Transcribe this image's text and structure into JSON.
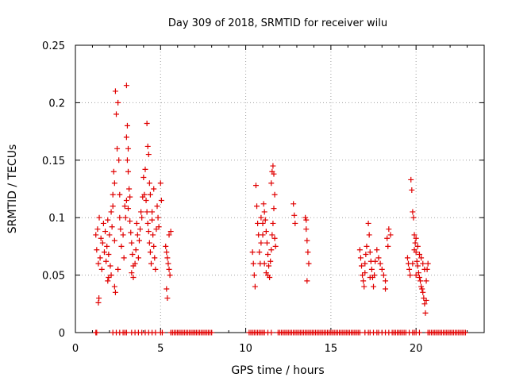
{
  "chart_data": {
    "type": "scatter",
    "title": "Day 309 of 2018, SRMTID for receiver wilu",
    "xlabel": "GPS time / hours",
    "ylabel": "SRMTID / TECUs",
    "xlim": [
      0,
      24
    ],
    "ylim": [
      0,
      0.25
    ],
    "x_ticks": [
      0,
      5,
      10,
      15,
      20
    ],
    "y_ticks": [
      0,
      0.05,
      0.1,
      0.15,
      0.2,
      0.25
    ],
    "x_tick_labels": [
      "0",
      "5",
      "10",
      "15",
      "20"
    ],
    "y_tick_labels": [
      "0",
      "0.05",
      "0.1",
      "0.15",
      "0.2",
      "0.25"
    ],
    "grid": true,
    "marker": "plus",
    "color": "#e00000",
    "series": [
      {
        "name": "SRMTID",
        "points": [
          [
            1.2,
            0.085
          ],
          [
            1.25,
            0.072
          ],
          [
            1.3,
            0.09
          ],
          [
            1.35,
            0.06
          ],
          [
            1.4,
            0.1
          ],
          [
            1.45,
            0.065
          ],
          [
            1.5,
            0.082
          ],
          [
            1.55,
            0.055
          ],
          [
            1.6,
            0.078
          ],
          [
            1.65,
            0.095
          ],
          [
            1.7,
            0.07
          ],
          [
            1.75,
            0.088
          ],
          [
            1.8,
            0.062
          ],
          [
            1.85,
            0.075
          ],
          [
            1.9,
            0.098
          ],
          [
            1.95,
            0.068
          ],
          [
            2.0,
            0.085
          ],
          [
            2.05,
            0.058
          ],
          [
            2.1,
            0.105
          ],
          [
            2.15,
            0.092
          ],
          [
            1.35,
            0.026
          ],
          [
            1.38,
            0.03
          ],
          [
            1.9,
            0.045
          ],
          [
            1.95,
            0.048
          ],
          [
            2.1,
            0.05
          ],
          [
            2.2,
            0.11
          ],
          [
            2.25,
            0.14
          ],
          [
            2.3,
            0.13
          ],
          [
            2.2,
            0.12
          ],
          [
            2.3,
            0.08
          ],
          [
            2.35,
            0.21
          ],
          [
            2.4,
            0.19
          ],
          [
            2.5,
            0.2
          ],
          [
            2.45,
            0.16
          ],
          [
            2.55,
            0.15
          ],
          [
            2.6,
            0.12
          ],
          [
            2.6,
            0.1
          ],
          [
            2.65,
            0.09
          ],
          [
            2.7,
            0.075
          ],
          [
            2.8,
            0.085
          ],
          [
            2.85,
            0.065
          ],
          [
            2.3,
            0.04
          ],
          [
            2.35,
            0.035
          ],
          [
            2.5,
            0.055
          ],
          [
            2.9,
            0.11
          ],
          [
            2.95,
            0.1
          ],
          [
            3.0,
            0.215
          ],
          [
            3.05,
            0.18
          ],
          [
            3.0,
            0.17
          ],
          [
            3.1,
            0.16
          ],
          [
            3.05,
            0.15
          ],
          [
            3.1,
            0.14
          ],
          [
            3.15,
            0.125
          ],
          [
            3.2,
            0.118
          ],
          [
            3.0,
            0.115
          ],
          [
            3.1,
            0.108
          ],
          [
            3.2,
            0.097
          ],
          [
            3.25,
            0.087
          ],
          [
            3.3,
            0.078
          ],
          [
            3.35,
            0.068
          ],
          [
            3.4,
            0.058
          ],
          [
            3.3,
            0.052
          ],
          [
            3.4,
            0.048
          ],
          [
            3.5,
            0.06
          ],
          [
            3.55,
            0.072
          ],
          [
            3.6,
            0.095
          ],
          [
            3.65,
            0.085
          ],
          [
            3.7,
            0.065
          ],
          [
            3.75,
            0.08
          ],
          [
            3.8,
            0.09
          ],
          [
            3.85,
            0.105
          ],
          [
            3.9,
            0.1
          ],
          [
            3.95,
            0.118
          ],
          [
            4.0,
            0.135
          ],
          [
            4.05,
            0.12
          ],
          [
            4.1,
            0.142
          ],
          [
            4.15,
            0.115
          ],
          [
            4.2,
            0.105
          ],
          [
            4.25,
            0.095
          ],
          [
            4.3,
            0.088
          ],
          [
            4.35,
            0.078
          ],
          [
            4.4,
            0.07
          ],
          [
            4.45,
            0.06
          ],
          [
            4.2,
            0.182
          ],
          [
            4.25,
            0.162
          ],
          [
            4.3,
            0.155
          ],
          [
            4.35,
            0.13
          ],
          [
            4.4,
            0.12
          ],
          [
            4.5,
            0.098
          ],
          [
            4.55,
            0.085
          ],
          [
            4.6,
            0.075
          ],
          [
            4.65,
            0.065
          ],
          [
            4.7,
            0.055
          ],
          [
            4.75,
            0.09
          ],
          [
            4.8,
            0.11
          ],
          [
            4.85,
            0.1
          ],
          [
            4.9,
            0.092
          ],
          [
            5.0,
            0.13
          ],
          [
            5.05,
            0.115
          ],
          [
            4.6,
            0.125
          ],
          [
            4.5,
            0.105
          ],
          [
            5.3,
            0.075
          ],
          [
            5.35,
            0.07
          ],
          [
            5.4,
            0.065
          ],
          [
            5.45,
            0.06
          ],
          [
            5.5,
            0.055
          ],
          [
            5.35,
            0.038
          ],
          [
            5.4,
            0.03
          ],
          [
            5.5,
            0.085
          ],
          [
            5.55,
            0.05
          ],
          [
            5.6,
            0.088
          ],
          [
            10.4,
            0.07
          ],
          [
            10.45,
            0.06
          ],
          [
            10.5,
            0.05
          ],
          [
            10.55,
            0.04
          ],
          [
            10.6,
            0.128
          ],
          [
            10.65,
            0.11
          ],
          [
            10.7,
            0.095
          ],
          [
            10.75,
            0.085
          ],
          [
            10.8,
            0.07
          ],
          [
            10.85,
            0.06
          ],
          [
            10.9,
            0.078
          ],
          [
            11.0,
            0.095
          ],
          [
            11.05,
            0.112
          ],
          [
            11.1,
            0.105
          ],
          [
            11.15,
            0.098
          ],
          [
            11.2,
            0.088
          ],
          [
            11.25,
            0.078
          ],
          [
            11.3,
            0.068
          ],
          [
            11.35,
            0.058
          ],
          [
            11.4,
            0.048
          ],
          [
            11.45,
            0.062
          ],
          [
            11.5,
            0.072
          ],
          [
            11.55,
            0.085
          ],
          [
            11.6,
            0.095
          ],
          [
            11.65,
            0.108
          ],
          [
            11.7,
            0.12
          ],
          [
            11.5,
            0.13
          ],
          [
            11.55,
            0.14
          ],
          [
            11.6,
            0.145
          ],
          [
            11.65,
            0.138
          ],
          [
            11.7,
            0.082
          ],
          [
            11.75,
            0.075
          ],
          [
            11.1,
            0.06
          ],
          [
            11.2,
            0.052
          ],
          [
            11.3,
            0.05
          ],
          [
            11.0,
            0.085
          ],
          [
            10.9,
            0.1
          ],
          [
            12.8,
            0.112
          ],
          [
            12.85,
            0.102
          ],
          [
            12.9,
            0.095
          ],
          [
            13.5,
            0.1
          ],
          [
            13.55,
            0.09
          ],
          [
            13.6,
            0.08
          ],
          [
            13.65,
            0.07
          ],
          [
            13.7,
            0.06
          ],
          [
            13.6,
            0.045
          ],
          [
            13.55,
            0.098
          ],
          [
            16.7,
            0.072
          ],
          [
            16.75,
            0.065
          ],
          [
            16.8,
            0.058
          ],
          [
            16.85,
            0.05
          ],
          [
            16.9,
            0.045
          ],
          [
            16.95,
            0.04
          ],
          [
            17.0,
            0.06
          ],
          [
            17.05,
            0.068
          ],
          [
            17.1,
            0.075
          ],
          [
            17.2,
            0.095
          ],
          [
            17.25,
            0.085
          ],
          [
            17.3,
            0.07
          ],
          [
            17.35,
            0.062
          ],
          [
            17.4,
            0.055
          ],
          [
            17.45,
            0.048
          ],
          [
            17.5,
            0.04
          ],
          [
            17.55,
            0.05
          ],
          [
            17.6,
            0.062
          ],
          [
            17.7,
            0.072
          ],
          [
            17.8,
            0.065
          ],
          [
            17.9,
            0.06
          ],
          [
            18.0,
            0.055
          ],
          [
            18.1,
            0.05
          ],
          [
            18.2,
            0.045
          ],
          [
            18.3,
            0.082
          ],
          [
            18.35,
            0.075
          ],
          [
            18.4,
            0.09
          ],
          [
            18.5,
            0.085
          ],
          [
            18.2,
            0.038
          ],
          [
            17.3,
            0.048
          ],
          [
            17.0,
            0.052
          ],
          [
            19.5,
            0.065
          ],
          [
            19.55,
            0.06
          ],
          [
            19.6,
            0.055
          ],
          [
            19.65,
            0.05
          ],
          [
            19.7,
            0.133
          ],
          [
            19.75,
            0.124
          ],
          [
            19.8,
            0.105
          ],
          [
            19.85,
            0.1
          ],
          [
            19.9,
            0.085
          ],
          [
            19.95,
            0.078
          ],
          [
            20.0,
            0.07
          ],
          [
            20.05,
            0.062
          ],
          [
            20.1,
            0.058
          ],
          [
            20.15,
            0.052
          ],
          [
            20.2,
            0.048
          ],
          [
            20.25,
            0.045
          ],
          [
            20.3,
            0.04
          ],
          [
            20.35,
            0.038
          ],
          [
            20.4,
            0.035
          ],
          [
            20.45,
            0.03
          ],
          [
            20.5,
            0.025
          ],
          [
            20.55,
            0.017
          ],
          [
            20.6,
            0.045
          ],
          [
            20.65,
            0.055
          ],
          [
            20.7,
            0.06
          ],
          [
            20.0,
            0.082
          ],
          [
            20.1,
            0.075
          ],
          [
            20.3,
            0.065
          ],
          [
            20.4,
            0.06
          ],
          [
            20.5,
            0.055
          ],
          [
            19.9,
            0.072
          ],
          [
            20.2,
            0.068
          ],
          [
            20.6,
            0.028
          ],
          [
            19.8,
            0.06
          ],
          [
            20.0,
            0.05
          ]
        ],
        "zero_points_x": [
          1.2,
          1.25,
          2.2,
          2.4,
          2.6,
          2.8,
          2.9,
          3.0,
          3.3,
          3.5,
          3.7,
          3.9,
          4.1,
          4.3,
          4.5,
          4.7,
          5.0,
          5.1,
          5.6,
          5.7,
          5.8,
          5.9,
          6.0,
          6.1,
          6.2,
          6.3,
          6.4,
          6.5,
          6.6,
          6.7,
          6.8,
          6.9,
          7.0,
          7.1,
          7.2,
          7.3,
          7.4,
          7.5,
          7.6,
          7.7,
          7.8,
          7.9,
          8.0,
          10.2,
          10.3,
          10.4,
          10.5,
          10.6,
          10.7,
          10.8,
          10.9,
          11.0,
          11.1,
          11.3,
          11.5,
          11.9,
          12.0,
          12.1,
          12.2,
          12.3,
          12.4,
          12.5,
          12.6,
          12.7,
          12.8,
          12.9,
          13.0,
          13.1,
          13.2,
          13.3,
          13.4,
          13.5,
          13.6,
          13.7,
          13.8,
          13.9,
          14.0,
          14.1,
          14.2,
          14.3,
          14.4,
          14.5,
          14.6,
          14.7,
          14.8,
          14.9,
          15.0,
          15.1,
          15.2,
          15.3,
          15.4,
          15.5,
          15.6,
          15.7,
          15.8,
          15.9,
          16.0,
          16.1,
          16.2,
          16.3,
          16.4,
          16.5,
          16.6,
          16.7,
          17.0,
          17.2,
          17.3,
          17.5,
          17.7,
          17.8,
          18.0,
          18.2,
          18.4,
          18.6,
          18.7,
          18.8,
          18.9,
          19.0,
          19.1,
          19.2,
          19.3,
          19.4,
          19.6,
          19.8,
          19.9,
          20.0,
          20.2,
          20.7,
          20.8,
          20.9,
          21.0,
          21.1,
          21.2,
          21.3,
          21.4,
          21.5,
          21.6,
          21.7,
          21.8,
          21.9,
          22.0,
          22.1,
          22.2,
          22.3,
          22.4,
          22.5,
          22.6,
          22.7,
          22.8,
          22.9
        ]
      }
    ]
  }
}
